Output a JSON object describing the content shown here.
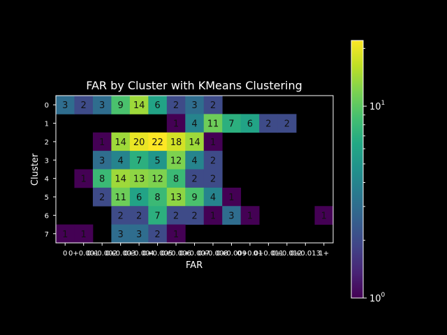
{
  "chart_data": {
    "type": "heatmap",
    "title": "FAR by Cluster with KMeans Clustering",
    "xlabel": "FAR",
    "ylabel": "Cluster",
    "x_tick_labels": [
      "0",
      "0+0.001",
      "0+0.002",
      "0+0.003",
      "0+0.004",
      "0+0.005",
      "0+0.006",
      "0+0.007",
      "0+0.008",
      "0+0.009",
      "0+0.01",
      "0+0.011",
      "0+0.012",
      "0+0.013",
      "1+"
    ],
    "y_tick_labels": [
      "0",
      "1",
      "2",
      "3",
      "4",
      "5",
      "6",
      "7"
    ],
    "values": [
      [
        3,
        2,
        3,
        9,
        14,
        6,
        2,
        3,
        2,
        null,
        null,
        null,
        null,
        null,
        null
      ],
      [
        null,
        null,
        null,
        null,
        null,
        null,
        1,
        4,
        11,
        7,
        6,
        2,
        2,
        null,
        null
      ],
      [
        null,
        null,
        1,
        14,
        20,
        22,
        18,
        14,
        1,
        null,
        null,
        null,
        null,
        null,
        null
      ],
      [
        null,
        null,
        3,
        4,
        7,
        5,
        12,
        4,
        2,
        null,
        null,
        null,
        null,
        null,
        null
      ],
      [
        null,
        1,
        8,
        14,
        13,
        12,
        8,
        2,
        2,
        null,
        null,
        null,
        null,
        null,
        null
      ],
      [
        null,
        null,
        2,
        11,
        6,
        8,
        13,
        9,
        4,
        1,
        null,
        null,
        null,
        null,
        null
      ],
      [
        null,
        null,
        null,
        2,
        2,
        7,
        2,
        2,
        1,
        3,
        1,
        null,
        null,
        null,
        1
      ],
      [
        1,
        1,
        null,
        3,
        3,
        2,
        1,
        null,
        null,
        null,
        null,
        null,
        null,
        null,
        null
      ]
    ],
    "colormap": "viridis",
    "color_scale": "log",
    "color_range": [
      1,
      22
    ],
    "colorbar_ticks": [
      {
        "value": 1,
        "label": "10",
        "exponent": "0"
      },
      {
        "value": 10,
        "label": "10",
        "exponent": "1"
      }
    ]
  }
}
